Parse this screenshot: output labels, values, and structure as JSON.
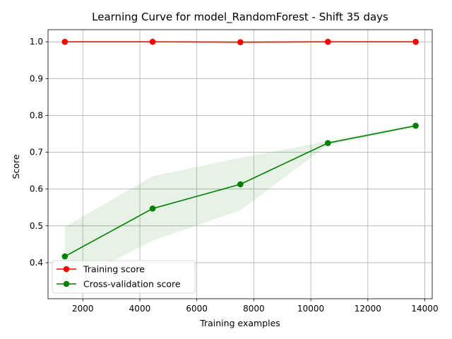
{
  "chart_data": {
    "type": "line",
    "title": "Learning Curve for model_RandomForest - Shift 35 days",
    "xlabel": "Training examples",
    "ylabel": "Score",
    "xlim": [
      780,
      14260
    ],
    "ylim": [
      0.302,
      1.033
    ],
    "grid": true,
    "legend_position": "lower-left",
    "x_ticks": [
      2000,
      4000,
      6000,
      8000,
      10000,
      12000,
      14000
    ],
    "x_tick_labels": [
      "2000",
      "4000",
      "6000",
      "8000",
      "10000",
      "12000",
      "14000"
    ],
    "y_ticks": [
      0.4,
      0.5,
      0.6,
      0.7,
      0.8,
      0.9,
      1.0
    ],
    "y_tick_labels": [
      "0.4",
      "0.5",
      "0.6",
      "0.7",
      "0.8",
      "0.9",
      "1.0"
    ],
    "x": [
      1370,
      4450,
      7530,
      10600,
      13680
    ],
    "series": [
      {
        "name": "Training score",
        "color": "#ff0000",
        "values": [
          1.0,
          1.0,
          0.999,
          1.0,
          1.0
        ],
        "band_lower": [
          1.0,
          1.0,
          0.998,
          1.0,
          1.0
        ],
        "band_upper": [
          1.0,
          1.0,
          1.0,
          1.0,
          1.0
        ],
        "band_color": "#ff0000"
      },
      {
        "name": "Cross-validation score",
        "color": "#008000",
        "values": [
          0.417,
          0.547,
          0.613,
          0.725,
          0.772
        ],
        "band_lower": [
          0.338,
          0.46,
          0.542,
          0.72,
          0.768
        ],
        "band_upper": [
          0.497,
          0.635,
          0.685,
          0.73,
          0.776
        ],
        "band_color": "#008000"
      }
    ]
  }
}
